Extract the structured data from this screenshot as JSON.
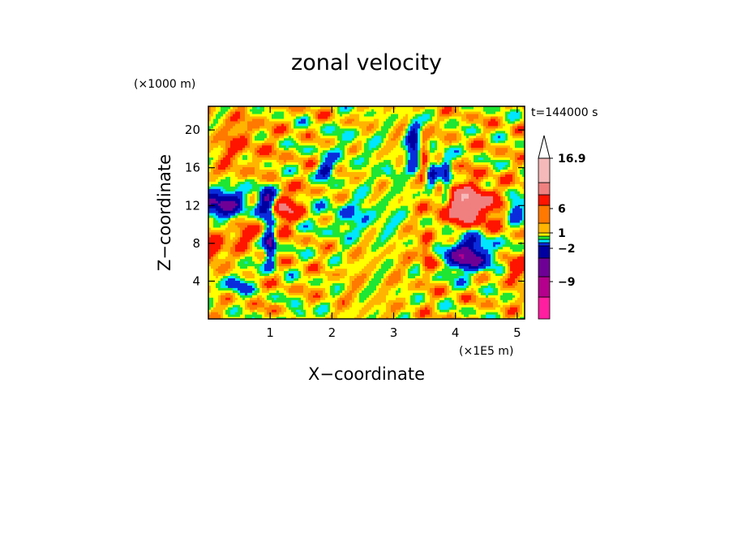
{
  "chart_data": {
    "type": "heatmap",
    "title": "zonal velocity",
    "xlabel": "X−coordinate",
    "ylabel": "Z−coordinate",
    "x_unit": "(×1E5 m)",
    "y_unit": "(×1000 m)",
    "time_label": "t=144000 s",
    "xlim": [
      0,
      5.12
    ],
    "ylim": [
      0,
      22.5
    ],
    "x_ticks": [
      1,
      2,
      3,
      4,
      5
    ],
    "y_ticks": [
      4,
      8,
      12,
      16,
      20
    ],
    "x_tick_labels": [
      "1",
      "2",
      "3",
      "4",
      "5"
    ],
    "y_tick_labels": [
      "4",
      "8",
      "12",
      "16",
      "20"
    ],
    "colorbar": {
      "colors": [
        "#ff1ea0",
        "#b4008c",
        "#6e0096",
        "#0000a0",
        "#0a2ddc",
        "#00e6ff",
        "#1ee632",
        "#ffff00",
        "#ffb400",
        "#ff7800",
        "#ff1400",
        "#f08080",
        "#f5b9b9",
        "#ffffff"
      ],
      "labels": [
        {
          "value": 16.9,
          "text": "16.9"
        },
        {
          "value": 6,
          "text": "6"
        },
        {
          "value": 1,
          "text": "1"
        },
        {
          "value": -2,
          "text": "−2"
        },
        {
          "value": -9,
          "text": "−9"
        }
      ]
    }
  }
}
